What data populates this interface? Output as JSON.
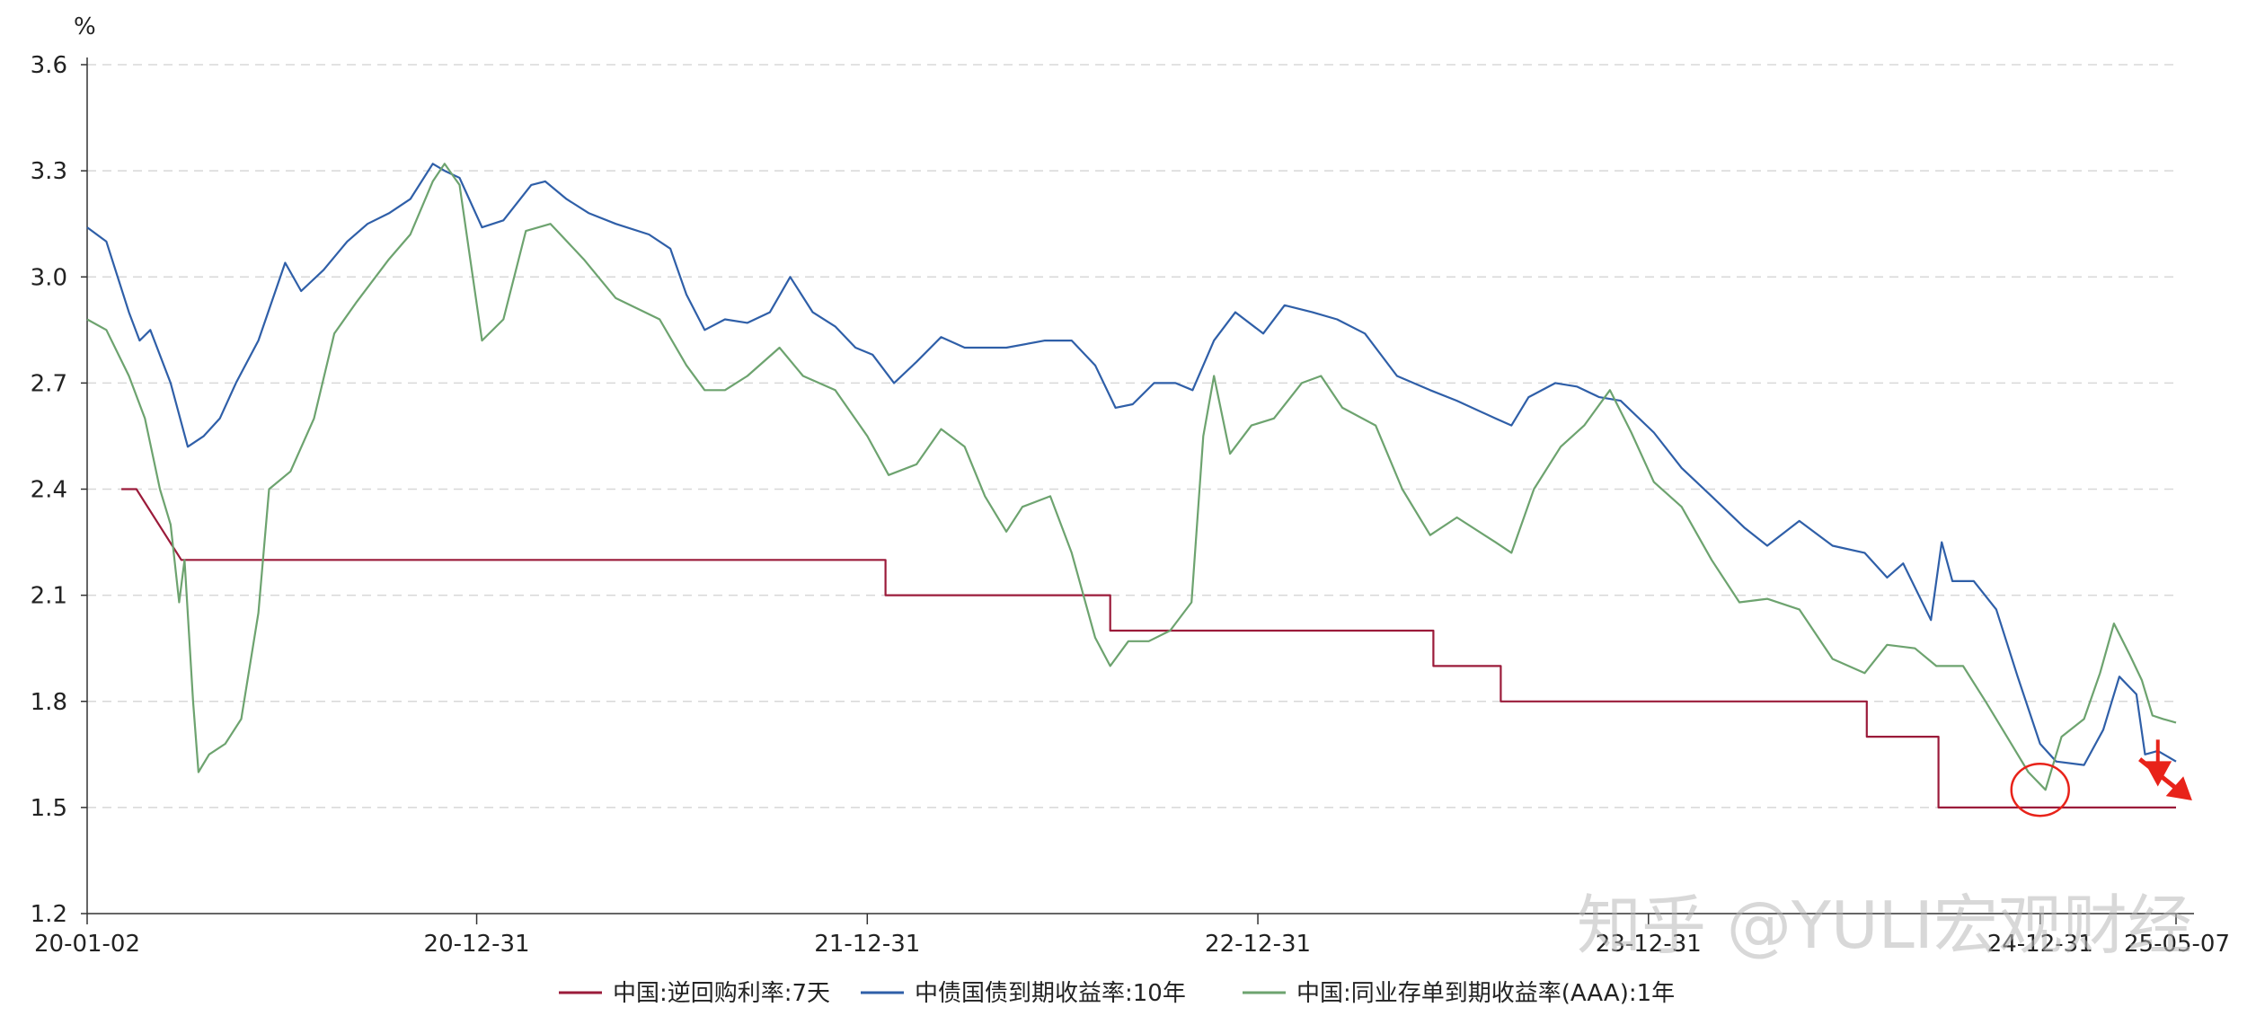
{
  "chart_data": {
    "type": "line",
    "unit": "%",
    "y_ticks": [
      "3.6",
      "3.3",
      "3.0",
      "2.7",
      "2.4",
      "2.1",
      "1.8",
      "1.5",
      "1.2"
    ],
    "ylim": [
      1.2,
      3.6
    ],
    "x_ticks": [
      "20-01-02",
      "20-12-31",
      "21-12-31",
      "22-12-31",
      "23-12-31",
      "24-12-31",
      "25-05-07"
    ],
    "x_tick_dates": [
      "2020-01-02",
      "2020-12-31",
      "2021-12-31",
      "2022-12-31",
      "2023-12-31",
      "2024-12-31",
      "2025-05-07"
    ],
    "xlim": [
      "2020-01-02",
      "2025-05-07"
    ],
    "grid": "horizontal-dashed",
    "legend_position": "bottom",
    "series": [
      {
        "name": "中国:逆回购利率:7天",
        "color": "#9b1b3a",
        "step": true,
        "points": [
          [
            "2020-02-03",
            2.4
          ],
          [
            "2020-02-17",
            2.4
          ],
          [
            "2020-03-30",
            2.2
          ],
          [
            "2020-12-31",
            2.2
          ],
          [
            "2022-01-17",
            2.2
          ],
          [
            "2022-01-17",
            2.1
          ],
          [
            "2022-08-15",
            2.1
          ],
          [
            "2022-08-15",
            2.0
          ],
          [
            "2023-06-13",
            2.0
          ],
          [
            "2023-06-13",
            1.9
          ],
          [
            "2023-08-15",
            1.9
          ],
          [
            "2023-08-15",
            1.8
          ],
          [
            "2024-07-22",
            1.8
          ],
          [
            "2024-07-22",
            1.7
          ],
          [
            "2024-09-27",
            1.7
          ],
          [
            "2024-09-27",
            1.5
          ],
          [
            "2025-05-07",
            1.5
          ]
        ]
      },
      {
        "name": "中债国债到期收益率:10年",
        "color": "#2f5fa8",
        "points": [
          [
            "2020-01-02",
            3.14
          ],
          [
            "2020-01-20",
            3.1
          ],
          [
            "2020-02-10",
            2.9
          ],
          [
            "2020-02-20",
            2.82
          ],
          [
            "2020-03-01",
            2.85
          ],
          [
            "2020-03-20",
            2.7
          ],
          [
            "2020-04-05",
            2.52
          ],
          [
            "2020-04-20",
            2.55
          ],
          [
            "2020-05-05",
            2.6
          ],
          [
            "2020-05-20",
            2.7
          ],
          [
            "2020-06-10",
            2.82
          ],
          [
            "2020-07-05",
            3.04
          ],
          [
            "2020-07-20",
            2.96
          ],
          [
            "2020-08-10",
            3.02
          ],
          [
            "2020-09-01",
            3.1
          ],
          [
            "2020-09-20",
            3.15
          ],
          [
            "2020-10-10",
            3.18
          ],
          [
            "2020-10-30",
            3.22
          ],
          [
            "2020-11-20",
            3.32
          ],
          [
            "2020-12-01",
            3.3
          ],
          [
            "2020-12-15",
            3.28
          ],
          [
            "2021-01-05",
            3.14
          ],
          [
            "2021-01-25",
            3.16
          ],
          [
            "2021-02-20",
            3.26
          ],
          [
            "2021-03-05",
            3.27
          ],
          [
            "2021-03-25",
            3.22
          ],
          [
            "2021-04-15",
            3.18
          ],
          [
            "2021-05-10",
            3.15
          ],
          [
            "2021-06-10",
            3.12
          ],
          [
            "2021-06-30",
            3.08
          ],
          [
            "2021-07-15",
            2.95
          ],
          [
            "2021-08-01",
            2.85
          ],
          [
            "2021-08-20",
            2.88
          ],
          [
            "2021-09-10",
            2.87
          ],
          [
            "2021-10-01",
            2.9
          ],
          [
            "2021-10-20",
            3.0
          ],
          [
            "2021-11-10",
            2.9
          ],
          [
            "2021-12-01",
            2.86
          ],
          [
            "2021-12-20",
            2.8
          ],
          [
            "2022-01-05",
            2.78
          ],
          [
            "2022-01-25",
            2.7
          ],
          [
            "2022-02-15",
            2.76
          ],
          [
            "2022-03-10",
            2.83
          ],
          [
            "2022-04-01",
            2.8
          ],
          [
            "2022-05-10",
            2.8
          ],
          [
            "2022-06-15",
            2.82
          ],
          [
            "2022-07-10",
            2.82
          ],
          [
            "2022-08-01",
            2.75
          ],
          [
            "2022-08-20",
            2.63
          ],
          [
            "2022-09-05",
            2.64
          ],
          [
            "2022-09-25",
            2.7
          ],
          [
            "2022-10-15",
            2.7
          ],
          [
            "2022-10-31",
            2.68
          ],
          [
            "2022-11-20",
            2.82
          ],
          [
            "2022-12-10",
            2.9
          ],
          [
            "2023-01-05",
            2.84
          ],
          [
            "2023-01-25",
            2.92
          ],
          [
            "2023-02-20",
            2.9
          ],
          [
            "2023-03-15",
            2.88
          ],
          [
            "2023-04-10",
            2.84
          ],
          [
            "2023-05-10",
            2.72
          ],
          [
            "2023-06-10",
            2.68
          ],
          [
            "2023-07-05",
            2.65
          ],
          [
            "2023-08-10",
            2.6
          ],
          [
            "2023-08-25",
            2.58
          ],
          [
            "2023-09-10",
            2.66
          ],
          [
            "2023-10-05",
            2.7
          ],
          [
            "2023-10-25",
            2.69
          ],
          [
            "2023-11-15",
            2.66
          ],
          [
            "2023-12-05",
            2.65
          ],
          [
            "2024-01-05",
            2.56
          ],
          [
            "2024-01-31",
            2.46
          ],
          [
            "2024-02-28",
            2.38
          ],
          [
            "2024-03-30",
            2.29
          ],
          [
            "2024-04-20",
            2.24
          ],
          [
            "2024-05-20",
            2.31
          ],
          [
            "2024-06-20",
            2.24
          ],
          [
            "2024-07-20",
            2.22
          ],
          [
            "2024-08-10",
            2.15
          ],
          [
            "2024-08-25",
            2.19
          ],
          [
            "2024-09-20",
            2.03
          ],
          [
            "2024-09-30",
            2.25
          ],
          [
            "2024-10-10",
            2.14
          ],
          [
            "2024-10-30",
            2.14
          ],
          [
            "2024-11-20",
            2.06
          ],
          [
            "2024-12-10",
            1.87
          ],
          [
            "2024-12-31",
            1.68
          ],
          [
            "2025-01-15",
            1.63
          ],
          [
            "2025-02-10",
            1.62
          ],
          [
            "2025-02-28",
            1.72
          ],
          [
            "2025-03-15",
            1.87
          ],
          [
            "2025-03-31",
            1.82
          ],
          [
            "2025-04-08",
            1.65
          ],
          [
            "2025-04-20",
            1.66
          ],
          [
            "2025-05-07",
            1.63
          ]
        ]
      },
      {
        "name": "中国:同业存单到期收益率(AAA):1年",
        "color": "#6da36f",
        "points": [
          [
            "2020-01-02",
            2.88
          ],
          [
            "2020-01-20",
            2.85
          ],
          [
            "2020-02-10",
            2.72
          ],
          [
            "2020-02-25",
            2.6
          ],
          [
            "2020-03-10",
            2.4
          ],
          [
            "2020-03-20",
            2.3
          ],
          [
            "2020-03-28",
            2.08
          ],
          [
            "2020-04-02",
            2.2
          ],
          [
            "2020-04-10",
            1.8
          ],
          [
            "2020-04-15",
            1.6
          ],
          [
            "2020-04-25",
            1.65
          ],
          [
            "2020-05-10",
            1.68
          ],
          [
            "2020-05-25",
            1.75
          ],
          [
            "2020-06-10",
            2.05
          ],
          [
            "2020-06-20",
            2.4
          ],
          [
            "2020-07-10",
            2.45
          ],
          [
            "2020-08-01",
            2.6
          ],
          [
            "2020-08-20",
            2.84
          ],
          [
            "2020-09-10",
            2.93
          ],
          [
            "2020-10-10",
            3.05
          ],
          [
            "2020-10-30",
            3.12
          ],
          [
            "2020-11-20",
            3.27
          ],
          [
            "2020-12-01",
            3.32
          ],
          [
            "2020-12-15",
            3.26
          ],
          [
            "2020-12-25",
            3.05
          ],
          [
            "2021-01-05",
            2.82
          ],
          [
            "2021-01-25",
            2.88
          ],
          [
            "2021-02-15",
            3.13
          ],
          [
            "2021-03-10",
            3.15
          ],
          [
            "2021-04-10",
            3.05
          ],
          [
            "2021-05-10",
            2.94
          ],
          [
            "2021-06-20",
            2.88
          ],
          [
            "2021-07-15",
            2.75
          ],
          [
            "2021-08-01",
            2.68
          ],
          [
            "2021-08-20",
            2.68
          ],
          [
            "2021-09-10",
            2.72
          ],
          [
            "2021-10-10",
            2.8
          ],
          [
            "2021-11-01",
            2.72
          ],
          [
            "2021-12-01",
            2.68
          ],
          [
            "2021-12-31",
            2.55
          ],
          [
            "2022-01-20",
            2.44
          ],
          [
            "2022-02-15",
            2.47
          ],
          [
            "2022-03-10",
            2.57
          ],
          [
            "2022-04-01",
            2.52
          ],
          [
            "2022-04-20",
            2.38
          ],
          [
            "2022-05-10",
            2.28
          ],
          [
            "2022-05-25",
            2.35
          ],
          [
            "2022-06-20",
            2.38
          ],
          [
            "2022-07-10",
            2.22
          ],
          [
            "2022-08-01",
            1.98
          ],
          [
            "2022-08-15",
            1.9
          ],
          [
            "2022-09-01",
            1.97
          ],
          [
            "2022-09-20",
            1.97
          ],
          [
            "2022-10-10",
            2.0
          ],
          [
            "2022-10-30",
            2.08
          ],
          [
            "2022-11-10",
            2.55
          ],
          [
            "2022-11-20",
            2.72
          ],
          [
            "2022-12-05",
            2.5
          ],
          [
            "2022-12-25",
            2.58
          ],
          [
            "2023-01-15",
            2.6
          ],
          [
            "2023-02-10",
            2.7
          ],
          [
            "2023-02-28",
            2.72
          ],
          [
            "2023-03-20",
            2.63
          ],
          [
            "2023-04-20",
            2.58
          ],
          [
            "2023-05-15",
            2.4
          ],
          [
            "2023-06-10",
            2.27
          ],
          [
            "2023-07-05",
            2.32
          ],
          [
            "2023-08-10",
            2.25
          ],
          [
            "2023-08-25",
            2.22
          ],
          [
            "2023-09-15",
            2.4
          ],
          [
            "2023-10-10",
            2.52
          ],
          [
            "2023-11-01",
            2.58
          ],
          [
            "2023-11-25",
            2.68
          ],
          [
            "2023-12-15",
            2.56
          ],
          [
            "2024-01-05",
            2.42
          ],
          [
            "2024-01-31",
            2.35
          ],
          [
            "2024-02-28",
            2.2
          ],
          [
            "2024-03-25",
            2.08
          ],
          [
            "2024-04-20",
            2.09
          ],
          [
            "2024-05-20",
            2.06
          ],
          [
            "2024-06-20",
            1.92
          ],
          [
            "2024-07-20",
            1.88
          ],
          [
            "2024-08-10",
            1.96
          ],
          [
            "2024-09-05",
            1.95
          ],
          [
            "2024-09-25",
            1.9
          ],
          [
            "2024-10-20",
            1.9
          ],
          [
            "2024-11-10",
            1.8
          ],
          [
            "2024-11-30",
            1.7
          ],
          [
            "2024-12-20",
            1.6
          ],
          [
            "2025-01-05",
            1.55
          ],
          [
            "2025-01-20",
            1.7
          ],
          [
            "2025-02-10",
            1.75
          ],
          [
            "2025-02-25",
            1.88
          ],
          [
            "2025-03-10",
            2.02
          ],
          [
            "2025-03-25",
            1.93
          ],
          [
            "2025-04-05",
            1.86
          ],
          [
            "2025-04-15",
            1.76
          ],
          [
            "2025-04-25",
            1.75
          ],
          [
            "2025-05-07",
            1.74
          ]
        ]
      }
    ],
    "annotations": [
      {
        "type": "circle",
        "color": "#e8231a",
        "date": "2024-12-31",
        "value": 1.55
      },
      {
        "type": "arrow-down",
        "color": "#e8231a",
        "date": "2025-04-20",
        "value": 1.57
      },
      {
        "type": "arrow-down-right",
        "color": "#e8231a",
        "date": "2025-05-05",
        "value": 1.54
      }
    ]
  },
  "watermark": "知乎 @YULI宏观财经"
}
